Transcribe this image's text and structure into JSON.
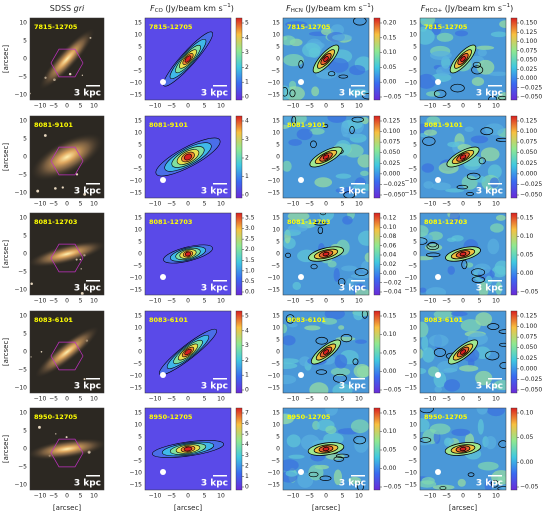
{
  "columns": [
    {
      "title": "SDSS ",
      "title_italic": "gri"
    },
    {
      "symbol": "F",
      "sub": "CO",
      "unit": " (Jy/beam km s",
      "sup": "−1",
      "close": ")"
    },
    {
      "symbol": "F",
      "sub": "HCN",
      "unit": " (Jy/beam km s",
      "sup": "−1",
      "close": ")"
    },
    {
      "symbol": "F",
      "sub": "HCO+",
      "unit": " (Jy/beam km s",
      "sup": "−1",
      "close": ")"
    }
  ],
  "rows": [
    {
      "label": "7815-12705",
      "scale": "3 kpc",
      "colorbars": [
        [
          "0",
          "1",
          "2",
          "3",
          "4",
          "5"
        ],
        [
          "−0.05",
          "0.00",
          "0.05",
          "0.10",
          "0.15",
          "0.20"
        ],
        [
          "−0.050",
          "−0.025",
          "0.000",
          "0.025",
          "0.050",
          "0.075",
          "0.100",
          "0.125",
          "0.150"
        ]
      ]
    },
    {
      "label": "8081-9101",
      "scale": "3 kpc",
      "colorbars": [
        [
          "0",
          "1",
          "2",
          "3",
          "4"
        ],
        [
          "−0.050",
          "−0.025",
          "0.000",
          "0.025",
          "0.050",
          "0.075",
          "0.100",
          "0.125"
        ],
        [
          "−0.050",
          "−0.025",
          "0.000",
          "0.025",
          "0.050",
          "0.075",
          "0.100",
          "0.125"
        ]
      ]
    },
    {
      "label": "8081-12703",
      "scale": "3 kpc",
      "colorbars": [
        [
          "0.0",
          "0.5",
          "1.0",
          "1.5",
          "2.0",
          "2.5",
          "3.0",
          "3.5"
        ],
        [
          "−0.04",
          "−0.02",
          "0.00",
          "0.02",
          "0.04",
          "0.06",
          "0.08",
          "0.10",
          "0.12"
        ],
        [
          "−0.05",
          "0.00",
          "0.05",
          "0.10",
          "0.15"
        ]
      ]
    },
    {
      "label": "8083-6101",
      "scale": "3 kpc",
      "colorbars": [
        [
          "0",
          "1",
          "2",
          "3",
          "4",
          "5"
        ],
        [
          "−0.05",
          "0.00",
          "0.05",
          "0.10",
          "0.15"
        ],
        [
          "−0.050",
          "−0.025",
          "0.000",
          "0.025",
          "0.050",
          "0.075",
          "0.100",
          "0.125"
        ]
      ]
    },
    {
      "label": "8950-12705",
      "scale": "3 kpc",
      "colorbars": [
        [
          "0",
          "1",
          "2",
          "3",
          "4",
          "5",
          "6",
          "7"
        ],
        [
          "−0.05",
          "0.00",
          "0.05",
          "0.10",
          "0.15"
        ],
        [
          "−0.05",
          "0.00",
          "0.05",
          "0.10"
        ]
      ]
    }
  ],
  "sdss_y_ticks": [
    "10",
    "5",
    "0",
    "−5",
    "−10"
  ],
  "y_ticks": [
    "15",
    "10",
    "5",
    "0",
    "−5",
    "−10",
    "−15"
  ],
  "x_ticks": [
    "−10",
    "−5",
    "0",
    "5",
    "10"
  ],
  "axis_label": "[arcsec]"
}
